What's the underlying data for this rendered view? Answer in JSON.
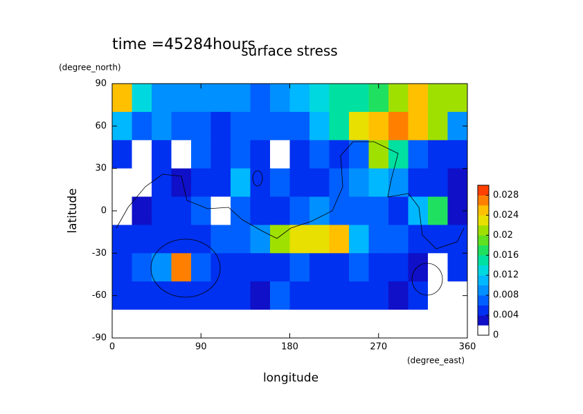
{
  "chart_data": {
    "type": "contour",
    "title": "surface stress",
    "subtitle": "time =45284hours",
    "x_label": "longitude",
    "y_label": "latitude",
    "x_units": "(degree_east)",
    "y_units": "(degree_north)",
    "xlim": [
      0,
      360
    ],
    "ylim": [
      -90,
      90
    ],
    "xticks": [
      0,
      90,
      180,
      270,
      360
    ],
    "yticks": [
      -90,
      -60,
      -30,
      0,
      30,
      60,
      90
    ],
    "x_edges": [
      0,
      20,
      40,
      60,
      80,
      100,
      120,
      140,
      160,
      180,
      200,
      220,
      240,
      260,
      280,
      300,
      320,
      340,
      360
    ],
    "y_edges": [
      90,
      70,
      50,
      30,
      10,
      -10,
      -30,
      -50,
      -70,
      -90
    ],
    "z": [
      [
        0.024,
        0.012,
        0.008,
        0.008,
        0.008,
        0.008,
        0.008,
        0.006,
        0.008,
        0.01,
        0.012,
        0.014,
        0.014,
        0.016,
        0.02,
        0.024,
        0.02,
        0.02
      ],
      [
        0.01,
        0.006,
        0.008,
        0.006,
        0.006,
        0.004,
        0.006,
        0.006,
        0.006,
        0.006,
        0.01,
        0.014,
        0.022,
        0.024,
        0.026,
        0.024,
        0.02,
        0.008
      ],
      [
        0.004,
        0,
        0.004,
        0,
        0.006,
        0.004,
        0.006,
        0.004,
        0,
        0.004,
        0.006,
        0.004,
        0.006,
        0.02,
        0.014,
        0.006,
        0.004,
        0.004
      ],
      [
        0,
        0,
        0.004,
        0.002,
        0.004,
        0.004,
        0.01,
        0.004,
        0.006,
        0.004,
        0.004,
        0.006,
        0.008,
        0.01,
        0.008,
        0.004,
        0.004,
        0.002
      ],
      [
        0,
        0.002,
        0.004,
        0.004,
        0.006,
        0,
        0.006,
        0.004,
        0.004,
        0.006,
        0.008,
        0.006,
        0.006,
        0.006,
        0.004,
        0.01,
        0.016,
        0.002
      ],
      [
        0.004,
        0.004,
        0.004,
        0.004,
        0.004,
        0.006,
        0.006,
        0.008,
        0.02,
        0.022,
        0.022,
        0.024,
        0.01,
        0.006,
        0.006,
        0.004,
        0.004,
        0.004
      ],
      [
        0.004,
        0.006,
        0.008,
        0.026,
        0.006,
        0.004,
        0.004,
        0.004,
        0.004,
        0.006,
        0.004,
        0.004,
        0.006,
        0.004,
        0.004,
        0.002,
        0,
        0.004
      ],
      [
        0.004,
        0.004,
        0.004,
        0.004,
        0.004,
        0.004,
        0.004,
        0.002,
        0.006,
        0.004,
        0.004,
        0.004,
        0.004,
        0.004,
        0.002,
        0.004,
        0,
        0
      ],
      [
        0,
        0,
        0,
        0,
        0,
        0,
        0,
        0,
        0,
        0,
        0,
        0,
        0,
        0,
        0,
        0,
        0,
        0
      ]
    ],
    "levels": [
      0,
      0.002,
      0.004,
      0.006,
      0.008,
      0.01,
      0.012,
      0.014,
      0.016,
      0.018,
      0.02,
      0.022,
      0.024,
      0.026,
      0.028,
      0.03
    ],
    "colors": [
      "#ffffff",
      "#1010c8",
      "#0030f0",
      "#0060ff",
      "#0090ff",
      "#00b8ff",
      "#00d8e0",
      "#00e0a0",
      "#20e060",
      "#60e020",
      "#a0e000",
      "#e8e000",
      "#ffc000",
      "#ff8000",
      "#ff4000"
    ],
    "clim": [
      0,
      0.03
    ],
    "cticks": [
      0,
      0.004,
      0.008,
      0.012,
      0.016,
      0.02,
      0.024,
      0.028
    ]
  }
}
